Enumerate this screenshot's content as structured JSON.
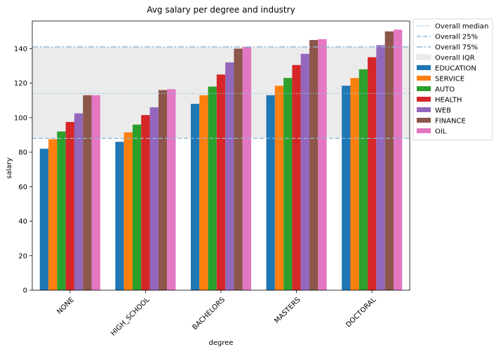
{
  "chart_data": {
    "type": "bar",
    "title": "Avg salary per degree and industry",
    "xlabel": "degree",
    "ylabel": "salary",
    "ylim": [
      0,
      156
    ],
    "yticks": [
      0,
      20,
      40,
      60,
      80,
      100,
      120,
      140
    ],
    "categories": [
      "NONE",
      "HIGH_SCHOOL",
      "BACHELORS",
      "MASTERS",
      "DOCTORAL"
    ],
    "series": [
      {
        "name": "EDUCATION",
        "color": "#1f77b4",
        "values": [
          82,
          86,
          108,
          113,
          118.5
        ]
      },
      {
        "name": "SERVICE",
        "color": "#ff7f0e",
        "values": [
          87.5,
          91.5,
          113,
          118.5,
          123
        ]
      },
      {
        "name": "AUTO",
        "color": "#2ca02c",
        "values": [
          92,
          96,
          118,
          123,
          128
        ]
      },
      {
        "name": "HEALTH",
        "color": "#d62728",
        "values": [
          97.5,
          101.5,
          125,
          130.5,
          135
        ]
      },
      {
        "name": "WEB",
        "color": "#9467bd",
        "values": [
          102.5,
          106,
          132,
          137,
          142
        ]
      },
      {
        "name": "FINANCE",
        "color": "#8c564b",
        "values": [
          113,
          116,
          140,
          145,
          150
        ]
      },
      {
        "name": "OIL",
        "color": "#e377c2",
        "values": [
          113,
          116.5,
          141,
          145.5,
          151
        ]
      }
    ],
    "reference_lines": [
      {
        "name": "Overall median",
        "value": 114,
        "style": "dotted",
        "color": "#8ec5df"
      },
      {
        "name": "Overall 25%",
        "value": 88,
        "style": "dashed",
        "color": "#8eb5d3"
      },
      {
        "name": "Overall 75%",
        "value": 141,
        "style": "dashdot",
        "color": "#8eb5d3"
      }
    ],
    "iqr_band": {
      "name": "Overall IQR",
      "from": 88,
      "to": 141,
      "color": "#ebebeb"
    },
    "x_tick_rotation": 45,
    "grid": false,
    "legend_position": "outside-top-right"
  }
}
